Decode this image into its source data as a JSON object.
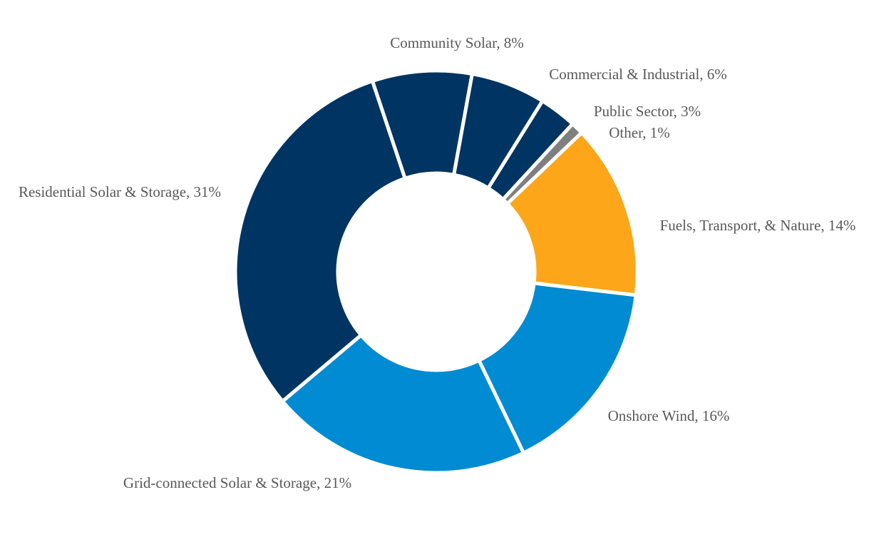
{
  "chart_data": {
    "type": "pie",
    "variant": "donut",
    "title": "",
    "start_angle_deg": 0,
    "direction": "clockwise",
    "slices": [
      {
        "name": "Other",
        "value": 1,
        "label": "Other, 1%",
        "color": "#7F7F7F"
      },
      {
        "name": "Fuels, Transport, & Nature",
        "value": 14,
        "label": "Fuels, Transport, & Nature, 14%",
        "color": "#FDA61A"
      },
      {
        "name": "Onshore Wind",
        "value": 16,
        "label": "Onshore Wind, 16%",
        "color": "#008BD2"
      },
      {
        "name": "Grid-connected Solar & Storage",
        "value": 21,
        "label": "Grid-connected Solar & Storage, 21%",
        "color": "#008BD2"
      },
      {
        "name": "Residential Solar & Storage",
        "value": 31,
        "label": "Residential Solar & Storage, 31%",
        "color": "#003462"
      },
      {
        "name": "Community Solar",
        "value": 8,
        "label": "Community Solar, 8%",
        "color": "#003462"
      },
      {
        "name": "Commercial & Industrial",
        "value": 6,
        "label": "Commercial & Industrial, 6%",
        "color": "#003462"
      },
      {
        "name": "Public Sector",
        "value": 3,
        "label": "Public Sector, 3%",
        "color": "#003462"
      }
    ]
  }
}
